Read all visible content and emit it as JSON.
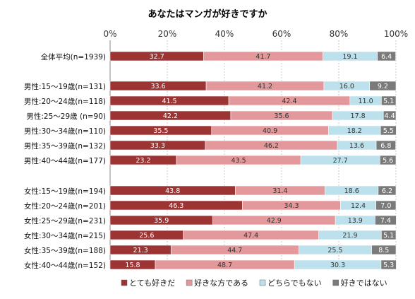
{
  "chart_data": {
    "type": "bar",
    "orientation": "horizontal",
    "stacked": true,
    "title": "あなたはマンガが好きですか",
    "xlim": [
      0,
      100
    ],
    "x_ticks": [
      "0%",
      "20%",
      "40%",
      "60%",
      "80%",
      "100%"
    ],
    "grid": true,
    "legend_position": "bottom",
    "categories": [
      "全体平均(n=1939)",
      "男性:15～19歳(n=131)",
      "男性:20～24歳(n=118)",
      "男性:25～29歳 (n=90)",
      "男性:30～34歳(n=110)",
      "男性:35～39歳(n=132)",
      "男性:40～44歳(n=177)",
      "女性:15～19歳(n=194)",
      "女性:20～24歳(n=201)",
      "女性:25～29歳(n=231)",
      "女性:30～34歳(n=215)",
      "女性:35～39歳(n=188)",
      "女性:40～44歳(n=152)"
    ],
    "series": [
      {
        "name": "とても好きだ",
        "color": "#9c3434",
        "label_color": "#ffffff",
        "values": [
          32.7,
          33.6,
          41.5,
          42.2,
          35.5,
          33.3,
          23.2,
          43.8,
          46.3,
          35.9,
          25.6,
          21.3,
          15.8
        ]
      },
      {
        "name": "好きな方である",
        "color": "#e3999b",
        "label_color": "#333333",
        "values": [
          41.7,
          41.2,
          42.4,
          35.6,
          40.9,
          46.2,
          43.5,
          31.4,
          34.3,
          42.9,
          47.4,
          44.7,
          48.7
        ]
      },
      {
        "name": "どちらでもない",
        "color": "#bde1ec",
        "label_color": "#333333",
        "values": [
          19.1,
          16.0,
          11.0,
          17.8,
          18.2,
          13.6,
          27.7,
          18.6,
          12.4,
          13.9,
          21.9,
          25.5,
          30.3
        ]
      },
      {
        "name": "好きではない",
        "color": "#7a7a7a",
        "label_color": "#ffffff",
        "values": [
          6.4,
          9.2,
          5.1,
          4.4,
          5.5,
          6.8,
          5.6,
          6.2,
          7.0,
          7.4,
          5.1,
          8.5,
          5.3
        ]
      }
    ]
  }
}
